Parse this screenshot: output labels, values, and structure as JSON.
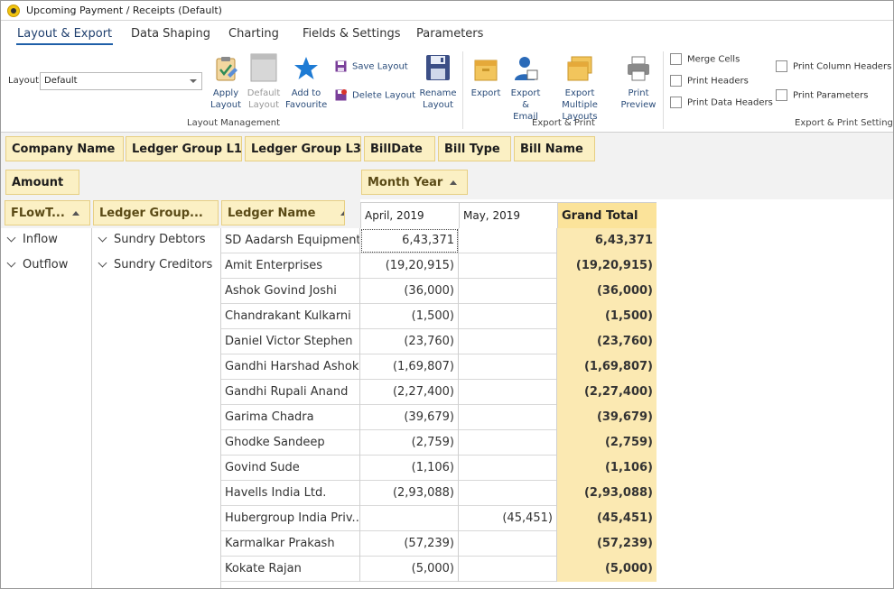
{
  "window": {
    "title": "Upcoming Payment / Receipts (Default)"
  },
  "tabs": [
    "Layout & Export",
    "Data Shaping",
    "Charting",
    "Fields & Settings",
    "Parameters"
  ],
  "ribbon": {
    "layout_label": "Layout",
    "layout_value": "Default",
    "apply_layout": "Apply\nLayout",
    "default_layout": "Default\nLayout",
    "add_favourite": "Add to\nFavourite",
    "save_layout": "Save Layout",
    "delete_layout": "Delete Layout",
    "rename_layout": "Rename\nLayout",
    "group_layout_mgmt": "Layout Management",
    "export": "Export",
    "export_email": "Export\n& Email",
    "export_multiple": "Export Multiple\nLayouts",
    "print_preview": "Print\nPreview",
    "group_export_print": "Export & Print",
    "merge_cells": "Merge Cells",
    "print_headers": "Print Headers",
    "print_data_headers": "Print Data Headers",
    "print_column_headers": "Print Column Headers",
    "print_parameters": "Print Parameters",
    "group_export_settings": "Export & Print Settings"
  },
  "filter_fields": [
    "Company Name",
    "Ledger Group L1",
    "Ledger Group L3",
    "BillDate",
    "Bill Type",
    "Bill Name"
  ],
  "data_field": "Amount",
  "column_field": "Month Year",
  "row_fields": [
    "FLowT...",
    "Ledger Group...",
    "Ledger Name"
  ],
  "columns": [
    "April, 2019",
    "May, 2019",
    "Grand Total"
  ],
  "flow_groups": [
    "Inflow",
    "Outflow"
  ],
  "ledger_groups": [
    "Sundry Debtors",
    "Sundry Creditors"
  ],
  "rows": [
    {
      "name": "SD Aadarsh Equipments",
      "apr": "6,43,371",
      "may": "",
      "total": "6,43,371"
    },
    {
      "name": "Amit Enterprises",
      "apr": "(19,20,915)",
      "may": "",
      "total": "(19,20,915)"
    },
    {
      "name": "Ashok Govind Joshi",
      "apr": "(36,000)",
      "may": "",
      "total": "(36,000)"
    },
    {
      "name": "Chandrakant Kulkarni",
      "apr": "(1,500)",
      "may": "",
      "total": "(1,500)"
    },
    {
      "name": "Daniel Victor Stephen",
      "apr": "(23,760)",
      "may": "",
      "total": "(23,760)"
    },
    {
      "name": "Gandhi Harshad Ashok",
      "apr": "(1,69,807)",
      "may": "",
      "total": "(1,69,807)"
    },
    {
      "name": "Gandhi Rupali Anand",
      "apr": "(2,27,400)",
      "may": "",
      "total": "(2,27,400)"
    },
    {
      "name": "Garima Chadra",
      "apr": "(39,679)",
      "may": "",
      "total": "(39,679)"
    },
    {
      "name": "Ghodke Sandeep",
      "apr": "(2,759)",
      "may": "",
      "total": "(2,759)"
    },
    {
      "name": "Govind  Sude",
      "apr": "(1,106)",
      "may": "",
      "total": "(1,106)"
    },
    {
      "name": "Havells India Ltd.",
      "apr": "(2,93,088)",
      "may": "",
      "total": "(2,93,088)"
    },
    {
      "name": "Hubergroup India Priv...",
      "apr": "",
      "may": "(45,451)",
      "total": "(45,451)"
    },
    {
      "name": "Karmalkar Prakash",
      "apr": "(57,239)",
      "may": "",
      "total": "(57,239)"
    },
    {
      "name": "Kokate Rajan",
      "apr": "(5,000)",
      "may": "",
      "total": "(5,000)"
    }
  ]
}
